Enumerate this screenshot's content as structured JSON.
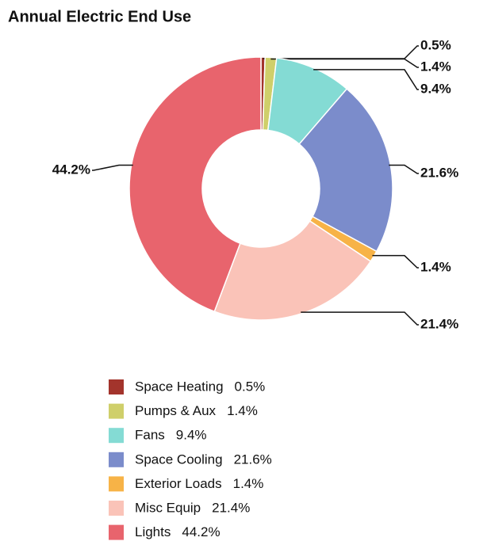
{
  "chart_data": {
    "type": "donut",
    "title": "Annual Electric End Use",
    "categories": [
      "Space Heating",
      "Pumps & Aux",
      "Fans",
      "Space Cooling",
      "Exterior Loads",
      "Misc Equip",
      "Lights"
    ],
    "values": [
      0.5,
      1.4,
      9.4,
      21.6,
      1.4,
      21.4,
      44.2
    ],
    "value_labels": [
      "0.5%",
      "1.4%",
      "9.4%",
      "21.6%",
      "1.4%",
      "21.4%",
      "44.2%"
    ],
    "colors": [
      "#a3342c",
      "#cfcf6a",
      "#84dbd4",
      "#7b8ccb",
      "#f7b347",
      "#fac3b8",
      "#e8646d"
    ],
    "legend": "bottom"
  }
}
